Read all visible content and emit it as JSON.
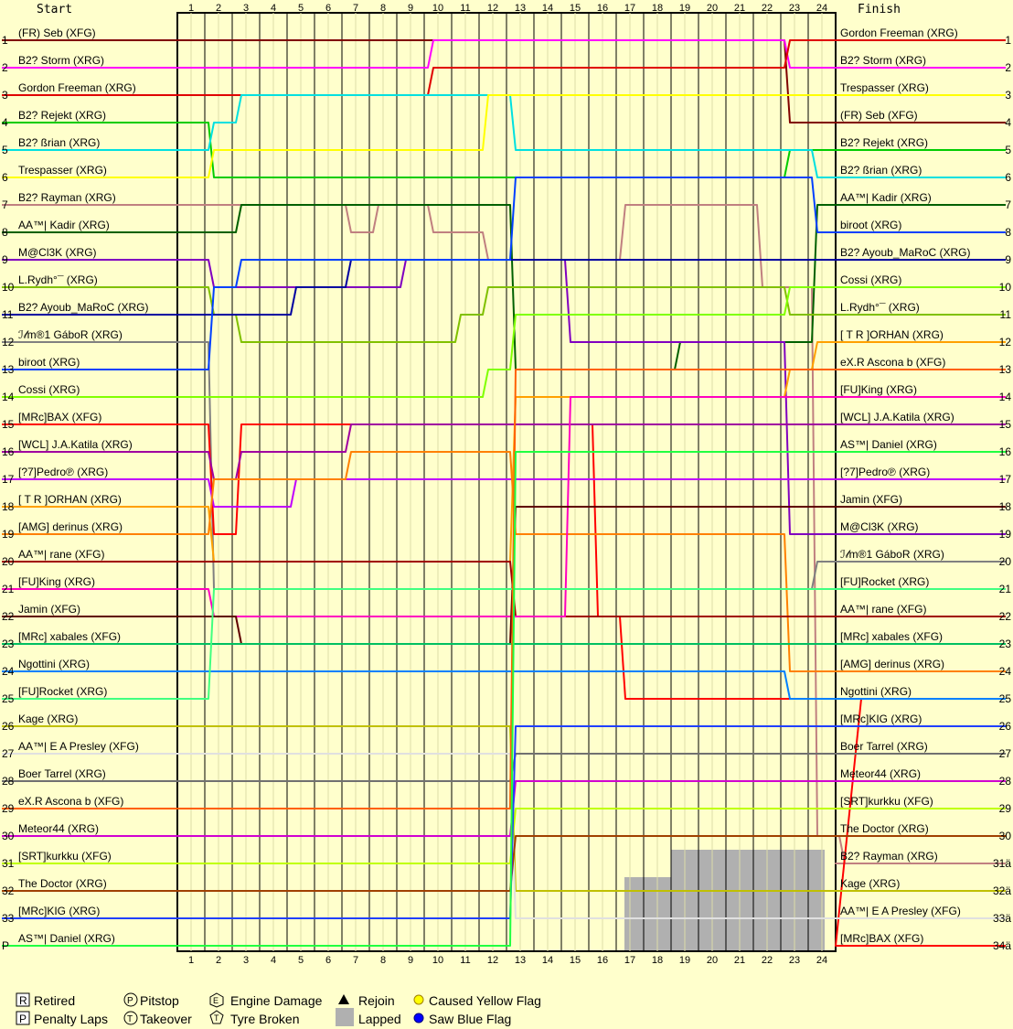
{
  "chart_data": {
    "type": "line",
    "headers": {
      "start": "Start",
      "finish": "Finish"
    },
    "laps": [
      "1",
      "2",
      "3",
      "4",
      "5",
      "6",
      "7",
      "8",
      "9",
      "10",
      "11",
      "12",
      "13",
      "14",
      "15",
      "16",
      "17",
      "18",
      "19",
      "20",
      "21",
      "22",
      "23",
      "24"
    ],
    "start_positions": [
      "1",
      "2",
      "3",
      "4",
      "5",
      "6",
      "7",
      "8",
      "9",
      "10",
      "11",
      "12",
      "13",
      "14",
      "15",
      "16",
      "17",
      "18",
      "19",
      "20",
      "21",
      "22",
      "23",
      "24",
      "25",
      "26",
      "27",
      "28",
      "29",
      "30",
      "31",
      "32",
      "33",
      "P"
    ],
    "finish_positions": [
      "1",
      "2",
      "3",
      "4",
      "5",
      "6",
      "7",
      "8",
      "9",
      "10",
      "11",
      "12",
      "13",
      "14",
      "15",
      "16",
      "17",
      "18",
      "19",
      "20",
      "21",
      "22",
      "23",
      "24",
      "25",
      "26",
      "27",
      "28",
      "29",
      "30",
      "31ä",
      "32ä",
      "33ä",
      "34ä"
    ],
    "start_labels": [
      "(FR) Seb (XFG)",
      "B2? Storm (XRG)",
      "Gordon Freeman (XRG)",
      "B2? Rejekt (XRG)",
      "B2? ßrian (XRG)",
      "Trespasser (XRG)",
      "B2? Rayman (XRG)",
      "AA™| Kadir (XRG)",
      "M@Cl3K (XRG)",
      "L.Rydh°¯ (XRG)",
      "B2? Ayoub_MaRoC (XRG)",
      "ℐ𝓁m®1 GáboR (XRG)",
      "biroot (XRG)",
      "Cossi (XRG)",
      "[MRc]BAX (XFG)",
      "[WCL] J.A.Katila (XRG)",
      "[?7]Pedro℗ (XRG)",
      "[ T R ]ORHAN (XRG)",
      "[AMG] derinus (XRG)",
      "AA™| rane (XFG)",
      "[FU]King (XRG)",
      "Jamin (XFG)",
      "[MRc] xabales (XFG)",
      "Ngottini (XRG)",
      "[FU]Rocket (XRG)",
      "Kage (XRG)",
      "AA™| E A Presley (XFG)",
      "Boer Tarrel (XRG)",
      "eX.R Ascona b (XFG)",
      "Meteor44 (XRG)",
      "[SRT]kurkku (XFG)",
      "The Doctor (XRG)",
      "[MRc]KIG (XRG)",
      "AS™| Daniel (XRG)"
    ],
    "finish_labels": [
      "Gordon Freeman (XRG)",
      "B2? Storm (XRG)",
      "Trespasser (XRG)",
      "(FR) Seb (XFG)",
      "B2? Rejekt (XRG)",
      "B2? ßrian (XRG)",
      "AA™| Kadir (XRG)",
      "biroot (XRG)",
      "B2? Ayoub_MaRoC (XRG)",
      "Cossi (XRG)",
      "L.Rydh°¯ (XRG)",
      "[ T R ]ORHAN (XRG)",
      "eX.R Ascona b (XFG)",
      "[FU]King (XRG)",
      "[WCL] J.A.Katila (XRG)",
      "AS™| Daniel (XRG)",
      "[?7]Pedro℗ (XRG)",
      "Jamin (XFG)",
      "M@Cl3K (XRG)",
      "ℐ𝓁m®1 GáboR (XRG)",
      "[FU]Rocket (XRG)",
      "AA™| rane (XFG)",
      "[MRc] xabales (XFG)",
      "[AMG] derinus (XRG)",
      "Ngottini (XRG)",
      "[MRc]KIG (XRG)",
      "Boer Tarrel (XRG)",
      "Meteor44 (XRG)",
      "[SRT]kurkku (XFG)",
      "The Doctor (XRG)",
      "B2? Rayman (XRG)",
      "Kage (XRG)",
      "AA™| E A Presley (XFG)",
      "[MRc]BAX (XFG)"
    ],
    "series": [
      {
        "name": "(FR) Seb (XFG)",
        "color": "#800000",
        "positions": [
          1,
          1,
          1,
          1,
          1,
          1,
          1,
          1,
          1,
          1,
          1,
          1,
          1,
          1,
          1,
          1,
          1,
          1,
          1,
          1,
          1,
          1,
          4,
          4,
          4
        ]
      },
      {
        "name": "B2? Storm (XRG)",
        "color": "#ff00ff",
        "positions": [
          2,
          2,
          2,
          2,
          2,
          2,
          2,
          2,
          2,
          1,
          1,
          1,
          1,
          1,
          1,
          1,
          1,
          1,
          1,
          1,
          1,
          1,
          2,
          2,
          2
        ]
      },
      {
        "name": "Gordon Freeman (XRG)",
        "color": "#e00000",
        "positions": [
          3,
          3,
          3,
          3,
          3,
          3,
          3,
          3,
          3,
          2,
          2,
          2,
          2,
          2,
          2,
          2,
          2,
          2,
          2,
          2,
          2,
          2,
          1,
          1,
          1
        ]
      },
      {
        "name": "B2? Rejekt (XRG)",
        "color": "#00cc00",
        "positions": [
          4,
          6,
          6,
          6,
          6,
          6,
          6,
          6,
          6,
          6,
          6,
          6,
          6,
          6,
          6,
          6,
          6,
          6,
          6,
          6,
          6,
          6,
          5,
          5,
          5
        ]
      },
      {
        "name": "B2? ßrian (XRG)",
        "color": "#00e0e0",
        "positions": [
          5,
          4,
          3,
          3,
          3,
          3,
          3,
          3,
          3,
          3,
          3,
          3,
          5,
          5,
          5,
          5,
          5,
          5,
          5,
          5,
          5,
          5,
          5,
          6,
          6
        ]
      },
      {
        "name": "Trespasser (XRG)",
        "color": "#ffff00",
        "positions": [
          6,
          5,
          5,
          5,
          5,
          5,
          5,
          5,
          5,
          5,
          5,
          3,
          3,
          3,
          3,
          3,
          3,
          3,
          3,
          3,
          3,
          3,
          3,
          3,
          3
        ]
      },
      {
        "name": "B2? Rayman (XRG)",
        "color": "#c08080",
        "positions": [
          7,
          7,
          7,
          7,
          7,
          7,
          8,
          7,
          7,
          8,
          8,
          9,
          9,
          9,
          9,
          9,
          7,
          7,
          7,
          7,
          7,
          10,
          10,
          30,
          31
        ]
      },
      {
        "name": "AA™| Kadir (XRG)",
        "color": "#006000",
        "positions": [
          8,
          8,
          7,
          7,
          7,
          7,
          7,
          7,
          7,
          7,
          7,
          7,
          13,
          13,
          13,
          13,
          13,
          13,
          12,
          12,
          12,
          12,
          12,
          7,
          7
        ]
      },
      {
        "name": "M@Cl3K (XRG)",
        "color": "#8000c0",
        "positions": [
          9,
          10,
          10,
          10,
          10,
          10,
          10,
          10,
          9,
          9,
          9,
          9,
          9,
          9,
          12,
          12,
          12,
          12,
          12,
          12,
          12,
          12,
          19,
          19,
          19
        ]
      },
      {
        "name": "L.Rydh°¯ (XRG)",
        "color": "#80c000",
        "positions": [
          10,
          11,
          12,
          12,
          12,
          12,
          12,
          12,
          12,
          12,
          11,
          10,
          10,
          10,
          10,
          10,
          10,
          10,
          10,
          10,
          10,
          10,
          11,
          11,
          11
        ]
      },
      {
        "name": "B2? Ayoub_MaRoC (XRG)",
        "color": "#0000a0",
        "positions": [
          11,
          11,
          11,
          11,
          10,
          10,
          9,
          9,
          9,
          9,
          9,
          9,
          9,
          9,
          9,
          9,
          9,
          9,
          9,
          9,
          9,
          9,
          9,
          9,
          9
        ]
      },
      {
        "name": "ℐ𝓁m®1 GáboR (XRG)",
        "color": "#808080",
        "positions": [
          12,
          21,
          21,
          21,
          21,
          21,
          21,
          21,
          21,
          21,
          21,
          21,
          21,
          21,
          21,
          21,
          21,
          21,
          21,
          21,
          21,
          21,
          21,
          20,
          20
        ]
      },
      {
        "name": "biroot (XRG)",
        "color": "#0040ff",
        "positions": [
          13,
          10,
          9,
          9,
          9,
          9,
          9,
          9,
          9,
          9,
          9,
          9,
          6,
          6,
          6,
          6,
          6,
          6,
          6,
          6,
          6,
          6,
          6,
          8,
          8
        ]
      },
      {
        "name": "Cossi (XRG)",
        "color": "#80ff00",
        "positions": [
          14,
          14,
          14,
          14,
          14,
          14,
          14,
          14,
          14,
          14,
          14,
          13,
          11,
          11,
          11,
          11,
          11,
          11,
          11,
          11,
          11,
          11,
          10,
          10,
          10
        ]
      },
      {
        "name": "[MRc]BAX (XFG)",
        "color": "#ff0000",
        "positions": [
          15,
          19,
          15,
          15,
          15,
          15,
          15,
          15,
          15,
          15,
          15,
          15,
          15,
          15,
          15,
          22,
          25,
          25,
          25,
          25,
          25,
          25,
          25,
          25,
          25
        ]
      },
      {
        "name": "[WCL] J.A.Katila (XRG)",
        "color": "#a000a0",
        "positions": [
          16,
          17,
          16,
          16,
          16,
          16,
          15,
          15,
          15,
          15,
          15,
          15,
          15,
          15,
          15,
          15,
          15,
          15,
          15,
          15,
          15,
          15,
          15,
          15,
          15
        ]
      },
      {
        "name": "[?7]Pedro℗ (XRG)",
        "color": "#c000ff",
        "positions": [
          17,
          18,
          18,
          18,
          17,
          17,
          17,
          17,
          17,
          17,
          17,
          17,
          17,
          17,
          17,
          17,
          17,
          17,
          17,
          17,
          17,
          17,
          17,
          17,
          17
        ]
      },
      {
        "name": "[ T R ]ORHAN (XRG)",
        "color": "#ffa000",
        "positions": [
          18,
          20,
          20,
          20,
          20,
          20,
          20,
          20,
          20,
          20,
          20,
          20,
          14,
          14,
          14,
          14,
          14,
          14,
          14,
          14,
          14,
          14,
          13,
          12,
          12
        ]
      },
      {
        "name": "[AMG] derinus (XRG)",
        "color": "#ff8000",
        "positions": [
          19,
          17,
          17,
          17,
          17,
          17,
          16,
          16,
          16,
          16,
          16,
          16,
          19,
          19,
          19,
          19,
          19,
          19,
          19,
          19,
          19,
          19,
          24,
          24,
          24
        ]
      },
      {
        "name": "AA™| rane (XFG)",
        "color": "#a00000",
        "positions": [
          20,
          20,
          20,
          20,
          20,
          20,
          20,
          20,
          20,
          20,
          20,
          20,
          22,
          22,
          22,
          22,
          22,
          22,
          22,
          22,
          22,
          22,
          22,
          22,
          22
        ]
      },
      {
        "name": "[FU]King (XRG)",
        "color": "#ff00c0",
        "positions": [
          21,
          22,
          22,
          22,
          22,
          22,
          22,
          22,
          22,
          22,
          22,
          22,
          22,
          22,
          14,
          14,
          14,
          14,
          14,
          14,
          14,
          14,
          14,
          14,
          14
        ]
      },
      {
        "name": "Jamin (XFG)",
        "color": "#600000",
        "positions": [
          22,
          22,
          23,
          23,
          23,
          23,
          23,
          23,
          23,
          23,
          23,
          23,
          18,
          18,
          18,
          18,
          18,
          18,
          18,
          18,
          18,
          18,
          18,
          18,
          18
        ]
      },
      {
        "name": "[MRc] xabales (XFG)",
        "color": "#00c060",
        "positions": [
          23,
          23,
          23,
          23,
          23,
          23,
          23,
          23,
          23,
          23,
          23,
          23,
          23,
          23,
          23,
          23,
          23,
          23,
          23,
          23,
          23,
          23,
          23,
          23,
          23
        ]
      },
      {
        "name": "Ngottini (XRG)",
        "color": "#0080ff",
        "positions": [
          24,
          24,
          24,
          24,
          24,
          24,
          24,
          24,
          24,
          24,
          24,
          24,
          24,
          24,
          24,
          24,
          24,
          24,
          24,
          24,
          24,
          24,
          25,
          25,
          25
        ]
      },
      {
        "name": "[FU]Rocket (XRG)",
        "color": "#40ff80",
        "positions": [
          25,
          21,
          21,
          21,
          21,
          21,
          21,
          21,
          21,
          21,
          21,
          21,
          21,
          21,
          21,
          21,
          21,
          21,
          21,
          21,
          21,
          21,
          21,
          21,
          21
        ]
      },
      {
        "name": "Kage (XRG)",
        "color": "#c0c000",
        "positions": [
          26,
          26,
          26,
          26,
          26,
          26,
          26,
          26,
          26,
          26,
          26,
          26,
          32,
          32,
          32,
          32,
          32,
          32,
          32,
          32,
          32,
          32,
          32,
          32,
          32
        ]
      },
      {
        "name": "AA™| E A Presley (XFG)",
        "color": "#e0e0e0",
        "positions": [
          27,
          27,
          27,
          27,
          27,
          27,
          27,
          27,
          27,
          27,
          27,
          27,
          33,
          33,
          33,
          33,
          33,
          33,
          33,
          33,
          33,
          33,
          33,
          33,
          33
        ]
      },
      {
        "name": "Boer Tarrel (XRG)",
        "color": "#707070",
        "positions": [
          28,
          28,
          28,
          28,
          28,
          28,
          28,
          28,
          28,
          28,
          28,
          28,
          27,
          27,
          27,
          27,
          27,
          27,
          27,
          27,
          27,
          27,
          27,
          27,
          27
        ]
      },
      {
        "name": "eX.R Ascona b (XFG)",
        "color": "#ff6000",
        "positions": [
          29,
          29,
          29,
          29,
          29,
          29,
          29,
          29,
          29,
          29,
          29,
          29,
          13,
          13,
          13,
          13,
          13,
          13,
          13,
          13,
          13,
          13,
          13,
          13,
          13
        ]
      },
      {
        "name": "Meteor44 (XRG)",
        "color": "#d000d0",
        "positions": [
          30,
          30,
          30,
          30,
          30,
          30,
          30,
          30,
          30,
          30,
          30,
          30,
          28,
          28,
          28,
          28,
          28,
          28,
          28,
          28,
          28,
          28,
          28,
          28,
          28
        ]
      },
      {
        "name": "[SRT]kurkku (XFG)",
        "color": "#c0ff00",
        "positions": [
          31,
          31,
          31,
          31,
          31,
          31,
          31,
          31,
          31,
          31,
          31,
          31,
          29,
          29,
          29,
          29,
          29,
          29,
          29,
          29,
          29,
          29,
          29,
          29,
          29
        ]
      },
      {
        "name": "The Doctor (XRG)",
        "color": "#a04000",
        "positions": [
          32,
          32,
          32,
          32,
          32,
          32,
          32,
          32,
          32,
          32,
          32,
          32,
          30,
          30,
          30,
          30,
          30,
          30,
          30,
          30,
          30,
          30,
          30,
          30,
          30
        ]
      },
      {
        "name": "[MRc]KIG (XRG)",
        "color": "#2040ff",
        "positions": [
          33,
          33,
          33,
          33,
          33,
          33,
          33,
          33,
          33,
          33,
          33,
          33,
          26,
          26,
          26,
          26,
          26,
          26,
          26,
          26,
          26,
          26,
          26,
          26,
          26
        ]
      },
      {
        "name": "AS™| Daniel (XRG)",
        "color": "#20ff40",
        "positions": [
          34,
          34,
          34,
          34,
          34,
          34,
          34,
          34,
          34,
          34,
          34,
          34,
          16,
          16,
          16,
          16,
          16,
          16,
          16,
          16,
          16,
          16,
          16,
          16,
          16
        ]
      }
    ],
    "lapped_regions": [
      {
        "from_lap": 16.3,
        "to_lap": 18,
        "from_pos": 31.5,
        "to_pos": 35
      },
      {
        "from_lap": 18,
        "to_lap": 23.6,
        "from_pos": 30.5,
        "to_pos": 35
      }
    ],
    "legend": {
      "retired": "Retired",
      "penalty": "Penalty Laps",
      "pitstop": "Pitstop",
      "takeover": "Takeover",
      "engine": "Engine Damage",
      "tyre": "Tyre Broken",
      "rejoin": "Rejoin",
      "lapped": "Lapped",
      "yellow": "Caused Yellow Flag",
      "blue": "Saw Blue Flag"
    },
    "legend_glyphs": {
      "retired": "R",
      "penalty": "P",
      "pitstop": "P",
      "takeover": "T",
      "engine": "E",
      "tyre": "T"
    },
    "colors": {
      "background": "#ffffcc",
      "yellow_flag": "#ffff00",
      "blue_flag": "#0000ff",
      "lapped": "#b0b0b0"
    }
  }
}
